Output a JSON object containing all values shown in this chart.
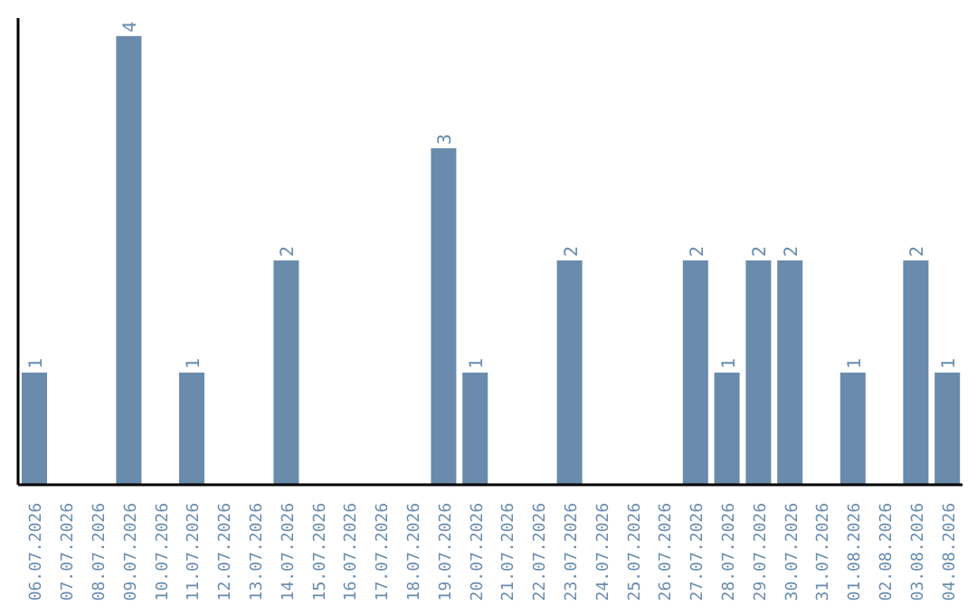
{
  "chart_data": {
    "type": "bar",
    "categories": [
      "06.07.2026",
      "07.07.2026",
      "08.07.2026",
      "09.07.2026",
      "10.07.2026",
      "11.07.2026",
      "12.07.2026",
      "13.07.2026",
      "14.07.2026",
      "15.07.2026",
      "16.07.2026",
      "17.07.2026",
      "18.07.2026",
      "19.07.2026",
      "20.07.2026",
      "21.07.2026",
      "22.07.2026",
      "23.07.2026",
      "24.07.2026",
      "25.07.2026",
      "26.07.2026",
      "27.07.2026",
      "28.07.2026",
      "29.07.2026",
      "30.07.2026",
      "31.07.2026",
      "01.08.2026",
      "02.08.2026",
      "03.08.2026",
      "04.08.2026"
    ],
    "values": [
      1,
      0,
      0,
      4,
      0,
      1,
      0,
      0,
      2,
      0,
      0,
      0,
      0,
      3,
      1,
      0,
      0,
      2,
      0,
      0,
      0,
      2,
      1,
      2,
      2,
      0,
      1,
      0,
      2,
      1
    ],
    "value_labels": [
      "1",
      null,
      null,
      "4",
      null,
      "1",
      null,
      null,
      "2",
      null,
      null,
      null,
      null,
      "3",
      "1",
      null,
      null,
      "2",
      null,
      null,
      null,
      "2",
      "1",
      "2",
      "2",
      null,
      "1",
      null,
      "2",
      "1"
    ],
    "color": "#6a8bab",
    "tick_labels": "x"
  }
}
